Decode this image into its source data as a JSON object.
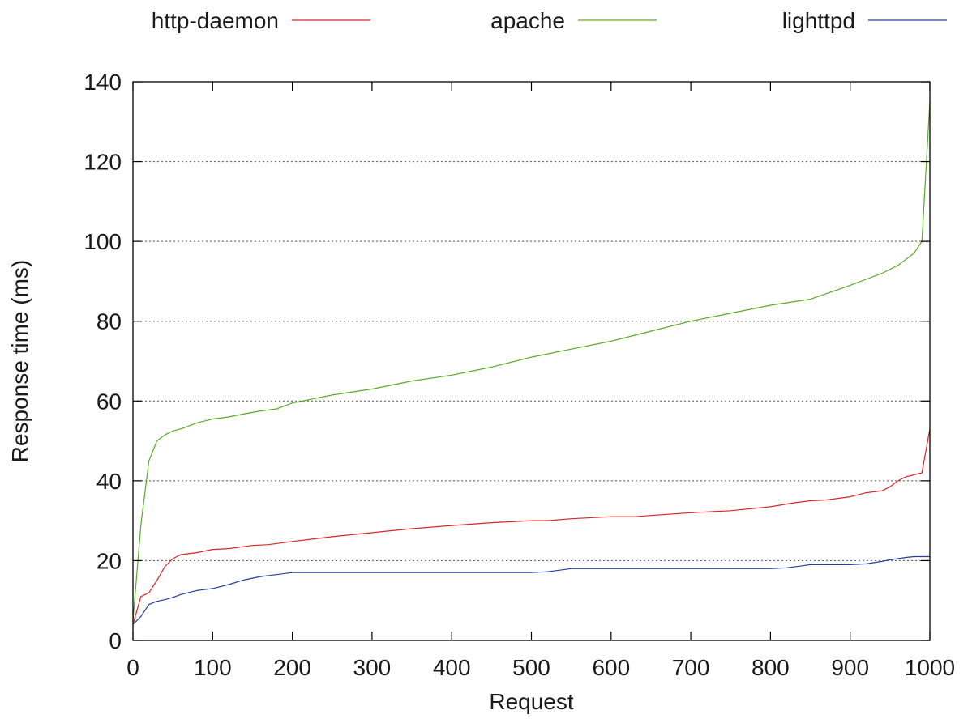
{
  "chart_data": {
    "type": "line",
    "title": "",
    "xlabel": "Request",
    "ylabel": "Response time (ms)",
    "xlim": [
      0,
      1000
    ],
    "ylim": [
      0,
      140
    ],
    "xticks": [
      0,
      100,
      200,
      300,
      400,
      500,
      600,
      700,
      800,
      900,
      1000
    ],
    "yticks": [
      0,
      20,
      40,
      60,
      80,
      100,
      120,
      140
    ],
    "grid": "horizontal dotted",
    "legend_position": "top",
    "series": [
      {
        "name": "http-daemon",
        "color": "#d62728",
        "x": [
          0,
          10,
          20,
          30,
          40,
          50,
          60,
          80,
          100,
          120,
          150,
          170,
          200,
          250,
          300,
          350,
          400,
          450,
          500,
          520,
          550,
          600,
          630,
          650,
          700,
          750,
          800,
          830,
          850,
          870,
          900,
          920,
          940,
          950,
          960,
          970,
          990,
          1000
        ],
        "y": [
          4,
          11,
          12,
          15,
          18.5,
          20.5,
          21.5,
          22,
          22.8,
          23,
          23.8,
          24,
          24.8,
          26,
          27,
          28,
          28.8,
          29.5,
          30,
          30,
          30.5,
          31,
          31,
          31.3,
          32,
          32.5,
          33.5,
          34.5,
          35,
          35.2,
          36,
          37,
          37.5,
          38.5,
          40,
          41,
          42,
          53
        ]
      },
      {
        "name": "apache",
        "color": "#5aaa28",
        "x": [
          0,
          10,
          20,
          30,
          40,
          50,
          60,
          80,
          100,
          120,
          140,
          160,
          180,
          200,
          250,
          300,
          350,
          400,
          450,
          500,
          550,
          600,
          650,
          700,
          750,
          800,
          850,
          900,
          920,
          940,
          960,
          970,
          980,
          990,
          1000
        ],
        "y": [
          5,
          29,
          45,
          50,
          51.5,
          52.5,
          53,
          54.5,
          55.5,
          56,
          56.8,
          57.5,
          58,
          59.5,
          61.5,
          63,
          65,
          66.5,
          68.5,
          71,
          73,
          75,
          77.5,
          80,
          82,
          84,
          85.5,
          89,
          90.5,
          92,
          94,
          95.5,
          97,
          100,
          135
        ]
      },
      {
        "name": "lighttpd",
        "color": "#2a3f9a",
        "x": [
          0,
          10,
          20,
          30,
          40,
          50,
          60,
          80,
          100,
          120,
          140,
          160,
          180,
          200,
          220,
          300,
          400,
          500,
          520,
          550,
          600,
          700,
          800,
          820,
          840,
          850,
          900,
          920,
          940,
          950,
          960,
          970,
          980,
          990,
          1000
        ],
        "y": [
          4,
          6,
          9,
          9.8,
          10.2,
          10.8,
          11.5,
          12.5,
          13,
          14,
          15.2,
          16,
          16.5,
          17,
          17,
          17,
          17,
          17,
          17.2,
          18,
          18,
          18,
          18,
          18.2,
          18.7,
          19,
          19,
          19.2,
          19.8,
          20.2,
          20.5,
          20.8,
          21,
          21,
          21
        ]
      }
    ]
  }
}
